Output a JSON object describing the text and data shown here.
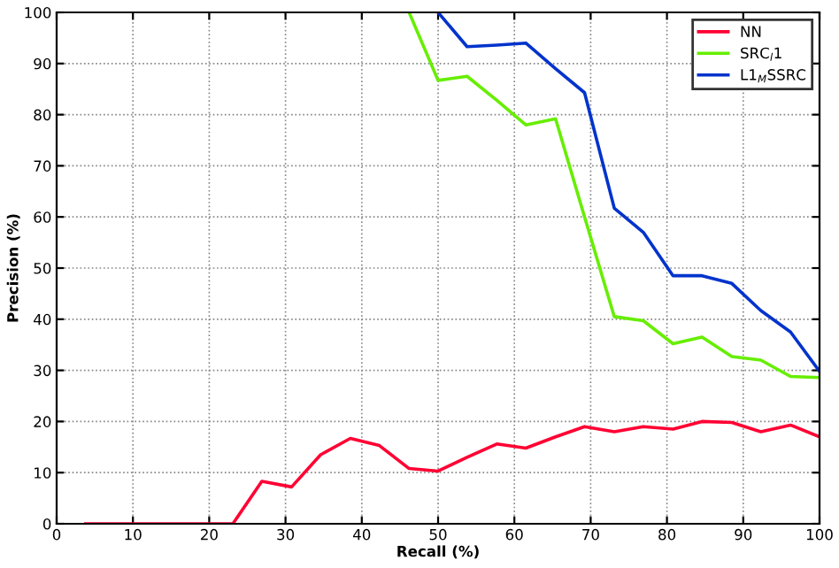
{
  "chart_data": {
    "type": "line",
    "xlabel": "Recall (%)",
    "ylabel": "Precision (%)",
    "xlim": [
      0,
      100
    ],
    "ylim": [
      0,
      100
    ],
    "xticks": [
      0,
      10,
      20,
      30,
      40,
      50,
      60,
      70,
      80,
      90,
      100
    ],
    "yticks": [
      0,
      10,
      20,
      30,
      40,
      50,
      60,
      70,
      80,
      90,
      100
    ],
    "grid": true,
    "legend": "top right",
    "line_style": "solid",
    "series": [
      {
        "name": "NN",
        "color": "#ff0033",
        "x": [
          3.8,
          7.7,
          11.5,
          15.4,
          19.2,
          23.1,
          26.9,
          30.8,
          34.6,
          38.5,
          42.3,
          46.2,
          50,
          53.8,
          57.7,
          61.5,
          65.4,
          69.2,
          73.1,
          76.9,
          80.8,
          84.6,
          88.5,
          92.3,
          96.2,
          100
        ],
        "values": [
          0,
          0,
          0,
          0,
          0,
          0,
          8.3,
          7.2,
          13.5,
          16.7,
          15.3,
          10.8,
          10.3,
          13,
          15.6,
          14.8,
          17,
          19,
          18,
          19,
          18.5,
          20,
          19.8,
          18,
          19.3,
          17
        ]
      },
      {
        "name": "SRC$_{l}$1",
        "color": "#66ee00",
        "x": [
          46.2,
          50,
          53.8,
          57.7,
          61.5,
          65.4,
          69.2,
          73.1,
          76.9,
          80.8,
          84.6,
          88.5,
          92.3,
          96.2,
          100
        ],
        "values": [
          100,
          86.7,
          87.5,
          82.8,
          78,
          79.2,
          60,
          40.5,
          39.7,
          35.2,
          36.5,
          32.7,
          32,
          28.8,
          28.6
        ]
      },
      {
        "name": "L1$_{M}$SSRC",
        "color": "#0033cc",
        "x": [
          50,
          53.8,
          57.7,
          61.5,
          65.4,
          69.2,
          73.1,
          76.9,
          80.8,
          84.6,
          88.5,
          92.3,
          96.2,
          100
        ],
        "values": [
          100,
          93.3,
          93.6,
          94,
          89,
          84.3,
          61.7,
          57,
          48.5,
          48.5,
          47,
          41.7,
          37.5,
          29.8
        ]
      }
    ]
  }
}
